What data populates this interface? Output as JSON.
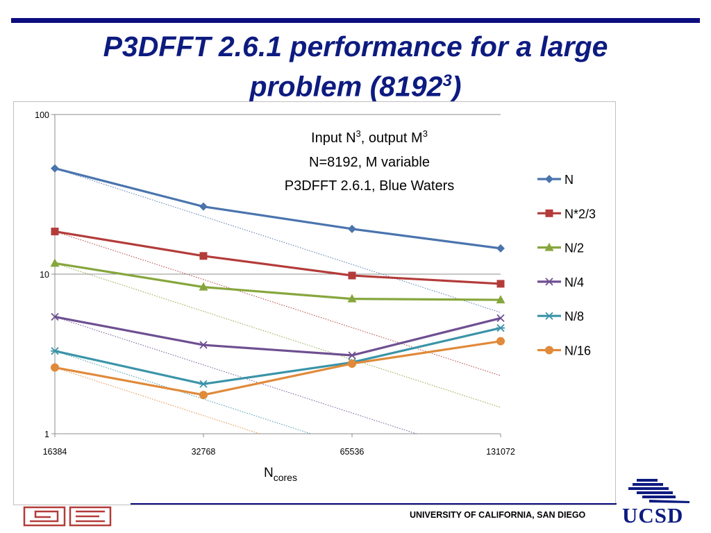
{
  "slide": {
    "title_line1": "P3DFFT 2.6.1 performance for a large",
    "title_line2_prefix": "problem (8192",
    "title_line2_sup": "3",
    "title_line2_suffix": ")",
    "footer_text": "UNIVERSITY OF CALIFORNIA, SAN DIEGO",
    "logo_text": "UCSD",
    "colors": {
      "title": "#0d1b80",
      "rule": "#0d0d80"
    }
  },
  "chart_data": {
    "type": "line",
    "y_scale": "log",
    "ylim": [
      1,
      100
    ],
    "y_ticks": [
      {
        "value": 1,
        "label": "1"
      },
      {
        "value": 10,
        "label": "10"
      },
      {
        "value": 100,
        "label": "100"
      }
    ],
    "categories": [
      "16384",
      "32768",
      "65536",
      "131072"
    ],
    "xlabel_main": "N",
    "xlabel_sub": "cores",
    "grid": "horizontal major",
    "legend_position": "right",
    "annotation": {
      "line1_prefix": "Input N",
      "line1_sup1": "3",
      "line1_mid": ", output M",
      "line1_sup2": "3",
      "line2": "N=8192, M variable",
      "line3": "P3DFFT 2.6.1, Blue Waters"
    },
    "series": [
      {
        "name": "N",
        "color": "#4a74ad",
        "marker": "diamond",
        "values": [
          46,
          26.5,
          19.2,
          14.5
        ]
      },
      {
        "name": "N*2/3",
        "color": "#b33c3a",
        "marker": "square",
        "values": [
          18.5,
          13,
          9.8,
          8.7
        ]
      },
      {
        "name": "N/2",
        "color": "#86a63d",
        "marker": "triangle",
        "values": [
          11.7,
          8.3,
          7,
          6.9
        ]
      },
      {
        "name": "N/4",
        "color": "#6e4f91",
        "marker": "x",
        "values": [
          5.4,
          3.6,
          3.1,
          5.3
        ]
      },
      {
        "name": "N/8",
        "color": "#3a94a8",
        "marker": "star",
        "values": [
          3.3,
          2.05,
          2.8,
          4.6
        ]
      },
      {
        "name": "N/16",
        "color": "#e08a3a",
        "marker": "circle",
        "values": [
          2.6,
          1.75,
          2.75,
          3.8
        ]
      }
    ]
  }
}
